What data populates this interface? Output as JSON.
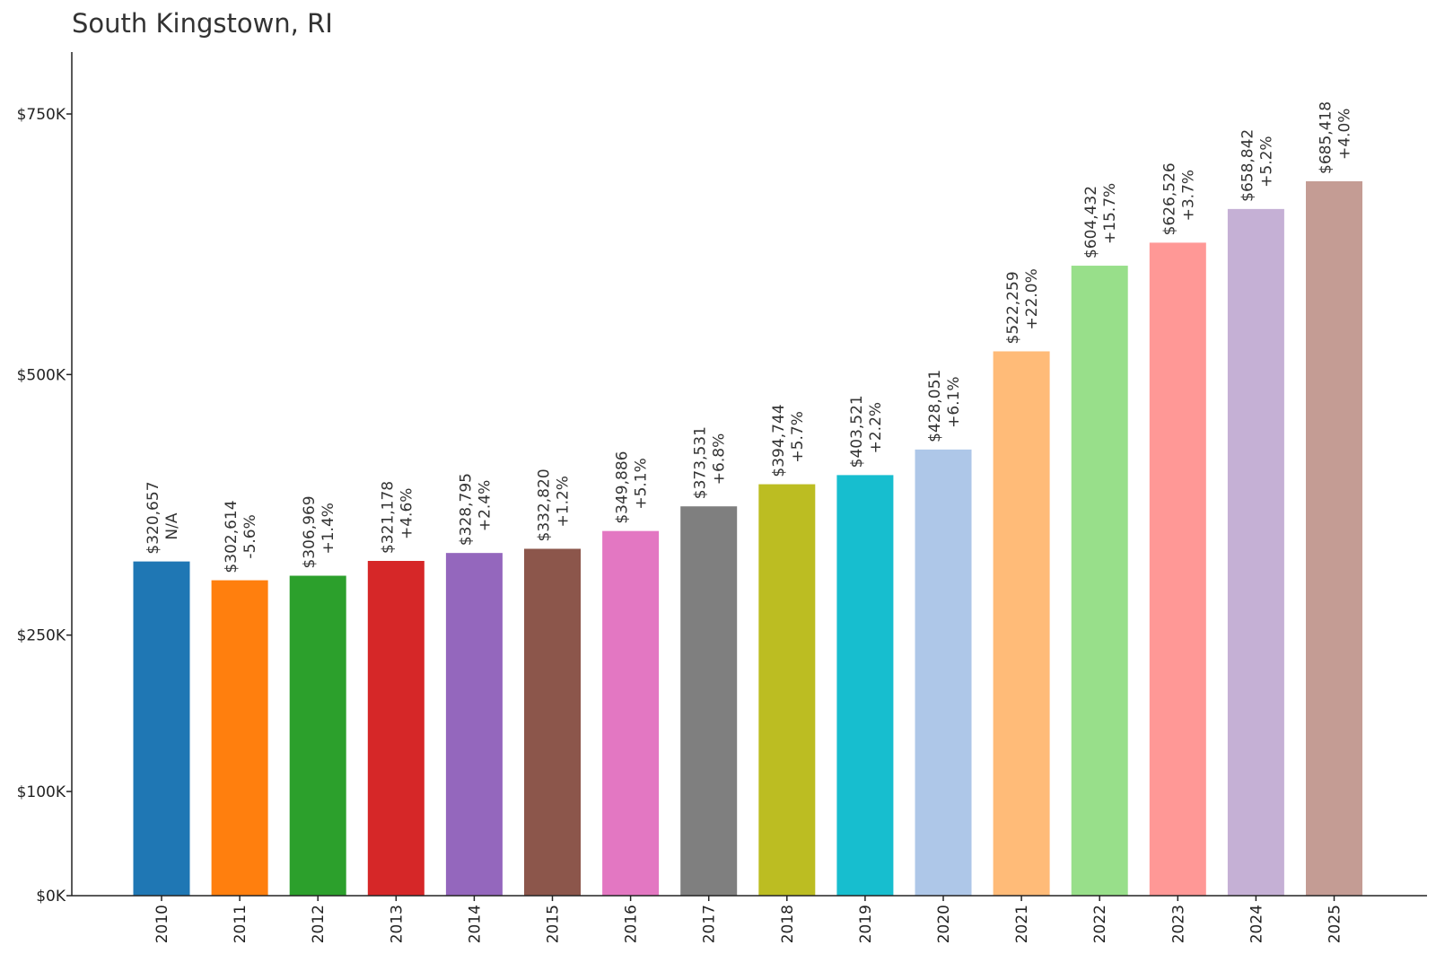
{
  "chart_data": {
    "type": "bar",
    "title": "South Kingstown, RI",
    "xlabel": "",
    "ylabel": "",
    "ylim": [
      0,
      750000
    ],
    "grid": false,
    "legend": "none",
    "categories": [
      "2010",
      "2011",
      "2012",
      "2013",
      "2014",
      "2015",
      "2016",
      "2017",
      "2018",
      "2019",
      "2020",
      "2021",
      "2022",
      "2023",
      "2024",
      "2025"
    ],
    "values": [
      320657,
      302614,
      306969,
      321178,
      328795,
      332820,
      349886,
      373531,
      394744,
      403521,
      428051,
      522259,
      604432,
      626526,
      658842,
      685418
    ],
    "value_labels": [
      "$320,657",
      "$302,614",
      "$306,969",
      "$321,178",
      "$328,795",
      "$332,820",
      "$349,886",
      "$373,531",
      "$394,744",
      "$403,521",
      "$428,051",
      "$522,259",
      "$604,432",
      "$626,526",
      "$658,842",
      "$685,418"
    ],
    "change_labels": [
      "N/A",
      "-5.6%",
      "+1.4%",
      "+4.6%",
      "+2.4%",
      "+1.2%",
      "+5.1%",
      "+6.8%",
      "+5.7%",
      "+2.2%",
      "+6.1%",
      "+22.0%",
      "+15.7%",
      "+3.7%",
      "+5.2%",
      "+4.0%"
    ],
    "colors": [
      "#1f77b4",
      "#ff7f0e",
      "#2ca02c",
      "#d62728",
      "#9467bd",
      "#8c564b",
      "#e377c2",
      "#7f7f7f",
      "#bcbd22",
      "#17becf",
      "#aec7e8",
      "#ffbb78",
      "#98df8a",
      "#ff9896",
      "#c5b0d5",
      "#c49c94"
    ],
    "yticks": [
      0,
      100000,
      250000,
      500000,
      750000
    ],
    "ytick_labels": [
      "$0K",
      "$100K",
      "$250K",
      "$500K",
      "$750K"
    ]
  }
}
